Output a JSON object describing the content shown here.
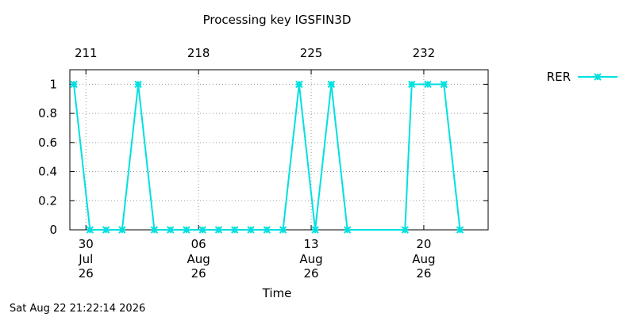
{
  "chart_data": {
    "type": "line",
    "title": "Processing key IGSFIN3D",
    "xlabel": "Time",
    "ylabel": "",
    "ylim": [
      0,
      1.1
    ],
    "y_ticks": [
      "0",
      "0.2",
      "0.4",
      "0.6",
      "0.8",
      "1"
    ],
    "y_tick_values": [
      0,
      0.2,
      0.4,
      0.6,
      0.8,
      1
    ],
    "x_date_range": [
      "2026-07-29T00:00",
      "2026-08-24T00:00"
    ],
    "bottom_ticks": [
      {
        "date": "2026-07-30",
        "day": "30",
        "month": "Jul",
        "year": "26"
      },
      {
        "date": "2026-08-06",
        "day": "06",
        "month": "Aug",
        "year": "26"
      },
      {
        "date": "2026-08-13",
        "day": "13",
        "month": "Aug",
        "year": "26"
      },
      {
        "date": "2026-08-20",
        "day": "20",
        "month": "Aug",
        "year": "26"
      }
    ],
    "top_ticks": [
      {
        "date": "2026-07-30",
        "label": "211"
      },
      {
        "date": "2026-08-06",
        "label": "218"
      },
      {
        "date": "2026-08-13",
        "label": "225"
      },
      {
        "date": "2026-08-20",
        "label": "232"
      }
    ],
    "grid": true,
    "legend_position": "top-right",
    "series": [
      {
        "name": "RER",
        "color": "#00e0e0",
        "marker": "star",
        "x": [
          "2026-07-29T06:00",
          "2026-07-30T06:00",
          "2026-07-31T06:00",
          "2026-08-01T06:00",
          "2026-08-02T06:00",
          "2026-08-03T06:00",
          "2026-08-04T06:00",
          "2026-08-05T06:00",
          "2026-08-06T06:00",
          "2026-08-07T06:00",
          "2026-08-08T06:00",
          "2026-08-09T06:00",
          "2026-08-10T06:00",
          "2026-08-11T06:00",
          "2026-08-12T06:00",
          "2026-08-13T06:00",
          "2026-08-14T06:00",
          "2026-08-15T06:00",
          "2026-08-18T20:00",
          "2026-08-19T06:00",
          "2026-08-20T06:00",
          "2026-08-21T06:00",
          "2026-08-22T06:00"
        ],
        "y": [
          1,
          0,
          0,
          0,
          1,
          0,
          0,
          0,
          0,
          0,
          0,
          0,
          0,
          0,
          1,
          0,
          1,
          0,
          0,
          1,
          1,
          1,
          0
        ]
      }
    ]
  },
  "footer": {
    "timestamp": "Sat Aug 22 21:22:14 2026"
  }
}
